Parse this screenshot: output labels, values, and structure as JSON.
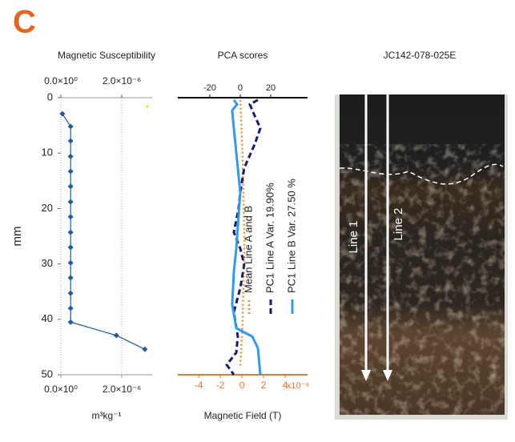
{
  "panel_label": "C",
  "chart_data": [
    {
      "type": "line",
      "title": "Magnetic Susceptibility",
      "xlabel": "m³kg⁻¹",
      "ylabel": "mm",
      "xlim": [
        0,
        3e-06
      ],
      "xticks": [
        {
          "value": 0,
          "label": "0.0×10⁰"
        },
        {
          "value": 2e-06,
          "label": "2.0×10⁻⁶"
        }
      ],
      "x_ticks_top": true,
      "ylim": [
        0,
        50
      ],
      "yticks": [
        0,
        10,
        20,
        30,
        40,
        50
      ],
      "grid": true,
      "series": [
        {
          "color": "#1f5c99",
          "marker": "diamond",
          "x": [
            5e-08,
            3.2e-07,
            3.2e-07,
            3.2e-07,
            3.2e-07,
            3.2e-07,
            3.2e-07,
            3.2e-07,
            3.2e-07,
            3.2e-07,
            3.2e-07,
            3.2e-07,
            3.2e-07,
            3.2e-07,
            3.2e-07,
            1.82e-06,
            2.76e-06
          ],
          "y": [
            2.9,
            5.2,
            7.8,
            10.6,
            13.3,
            16.0,
            18.8,
            21.5,
            24.3,
            27.0,
            29.8,
            32.5,
            35.3,
            38.0,
            40.5,
            42.9,
            45.4
          ]
        },
        {
          "color": "#e3dc1c",
          "marker": "dot",
          "line": false,
          "x": [
            2.84e-06
          ],
          "y": [
            1.6
          ]
        }
      ]
    },
    {
      "type": "line",
      "title": "PCA scores",
      "xlabel": "Magnetic Field (T)",
      "x_multiplier_label": "x10⁻⁸",
      "xlim": [
        -5.93,
        6.07
      ],
      "xticks": [
        -4,
        -2,
        0,
        2,
        4
      ],
      "xaxis_color": "#e8772e",
      "x2lim": [
        -41,
        44.2
      ],
      "x2ticks": [
        -20,
        0,
        20
      ],
      "x2axis_color": "#000000",
      "ylim": [
        0,
        50
      ],
      "grid": false,
      "legend": "lower center",
      "series": [
        {
          "name": "Mean Line A and B",
          "color": "#f0922e",
          "dash": "dotted",
          "x": [
            -0.15,
            0.07,
            0.22,
            0.07,
            -0.15
          ],
          "y": [
            0.4,
            11.3,
            25.7,
            40.2,
            48.8
          ]
        },
        {
          "name": "PC1 Line A Var. 19.90%",
          "color": "#1a1a6e",
          "dash": "dashed",
          "axis": "x2",
          "x": [
            11.6,
            6.3,
            8.4,
            13.2,
            9.5,
            2.6,
            0,
            -1.1,
            -4.2,
            0,
            2.6,
            0,
            -4.2,
            -1.6,
            -2.6,
            -8.9,
            -4.2
          ],
          "y": [
            0.4,
            1.2,
            2.6,
            5.5,
            8.4,
            12.7,
            17.1,
            20,
            24.3,
            27.2,
            30.1,
            34.4,
            38.7,
            43.1,
            46,
            48.2,
            50
          ]
        },
        {
          "name": "PC1 Line B Var. 27.50 %",
          "color": "#3399ee",
          "dash": "solid",
          "axis": "x2",
          "x": [
            -4.2,
            -2.1,
            -5.3,
            -4.2,
            -2.1,
            0,
            -1.1,
            -2.6,
            -4.2,
            -5.3,
            -2.6,
            7.9,
            11.6,
            13.2
          ],
          "y": [
            0.4,
            1.2,
            2.3,
            5.5,
            11.3,
            17.1,
            21.4,
            27.2,
            31.5,
            37.3,
            41.6,
            43.1,
            45.2,
            50
          ]
        }
      ]
    }
  ],
  "photo": {
    "title": "JC142-078-025E",
    "lines": [
      "Line 1",
      "Line 2"
    ]
  }
}
